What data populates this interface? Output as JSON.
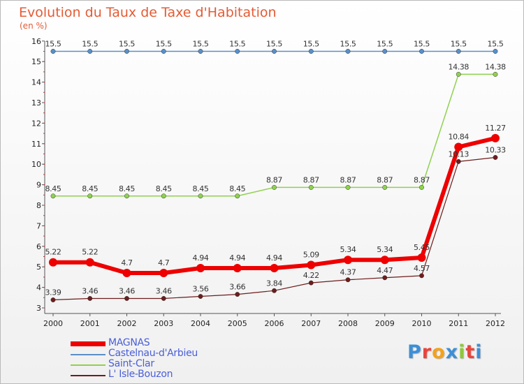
{
  "chart_data": {
    "type": "line",
    "title": "Evolution du Taux de Taxe d'Habitation",
    "subtitle": "(en %)",
    "x": [
      "2000",
      "2001",
      "2002",
      "2003",
      "2004",
      "2005",
      "2006",
      "2007",
      "2008",
      "2009",
      "2010",
      "2011",
      "2012"
    ],
    "y_ticks": [
      "3",
      "4",
      "5",
      "6",
      "7",
      "8",
      "9",
      "10",
      "11",
      "12",
      "13",
      "14",
      "15",
      "16"
    ],
    "ylim": [
      3,
      16
    ],
    "legend_position": "bottom-left",
    "series": [
      {
        "name": "Castelnau-d'Arbieu",
        "color": "#5a8fc8",
        "values": [
          15.5,
          15.5,
          15.5,
          15.5,
          15.5,
          15.5,
          15.5,
          15.5,
          15.5,
          15.5,
          15.5,
          15.5,
          15.5
        ],
        "labels": [
          "15.5",
          "15.5",
          "15.5",
          "15.5",
          "15.5",
          "15.5",
          "15.5",
          "15.5",
          "15.5",
          "15.5",
          "15.5",
          "15.5",
          "15.5"
        ]
      },
      {
        "name": "Saint-Clar",
        "color": "#8fd14f",
        "values": [
          8.45,
          8.45,
          8.45,
          8.45,
          8.45,
          8.45,
          8.87,
          8.87,
          8.87,
          8.87,
          8.87,
          14.38,
          14.38
        ],
        "labels": [
          "8.45",
          "8.45",
          "8.45",
          "8.45",
          "8.45",
          "8.45",
          "8.87",
          "8.87",
          "8.87",
          "8.87",
          "8.87",
          "14.38",
          "14.38"
        ]
      },
      {
        "name": "L' Isle-Bouzon",
        "color": "#6e1c1c",
        "values": [
          3.39,
          3.46,
          3.46,
          3.46,
          3.56,
          3.66,
          3.84,
          4.22,
          4.37,
          4.47,
          4.57,
          10.13,
          10.33
        ],
        "labels": [
          "3.39",
          "3.46",
          "3.46",
          "3.46",
          "3.56",
          "3.66",
          "3.84",
          "4.22",
          "4.37",
          "4.47",
          "4.57",
          "10.13",
          "10.33"
        ]
      },
      {
        "name": "MAGNAS",
        "color": "#ee0000",
        "values": [
          5.22,
          5.22,
          4.7,
          4.7,
          4.94,
          4.94,
          4.94,
          5.09,
          5.34,
          5.34,
          5.45,
          10.84,
          11.27
        ],
        "labels": [
          "5.22",
          "5.22",
          "4.7",
          "4.7",
          "4.94",
          "4.94",
          "4.94",
          "5.09",
          "5.34",
          "5.34",
          "5.45",
          "10.84",
          "11.27"
        ]
      }
    ]
  },
  "legend": [
    {
      "label": "MAGNAS",
      "color": "#ee0000"
    },
    {
      "label": "Castelnau-d'Arbieu",
      "color": "#5a8fc8"
    },
    {
      "label": "Saint-Clar",
      "color": "#8fd14f"
    },
    {
      "label": "L' Isle-Bouzon",
      "color": "#6e1c1c"
    }
  ],
  "logo": {
    "letters": [
      "P",
      "r",
      "o",
      "x",
      "i",
      "t",
      "i"
    ],
    "colors": [
      "#3d8fd6",
      "#e8453c",
      "#f3a21b",
      "#3d8fd6",
      "#8fc73e",
      "#e8453c",
      "#3d8fd6"
    ]
  }
}
